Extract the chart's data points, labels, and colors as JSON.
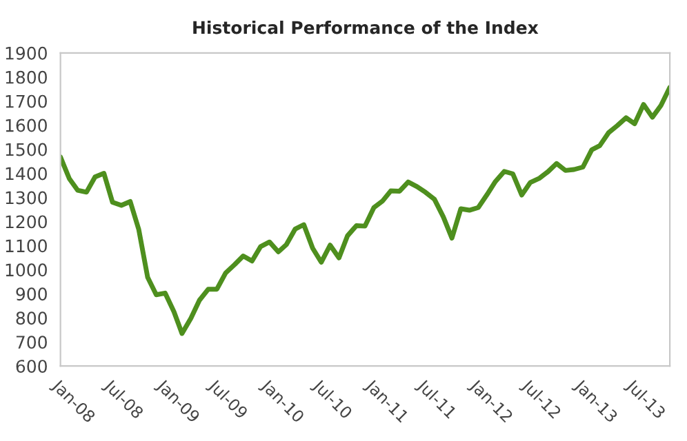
{
  "chart_data": {
    "type": "line",
    "title": "Historical Performance of the Index",
    "x": [
      "2008-01",
      "2008-02",
      "2008-03",
      "2008-04",
      "2008-05",
      "2008-06",
      "2008-07",
      "2008-08",
      "2008-09",
      "2008-10",
      "2008-11",
      "2008-12",
      "2009-01",
      "2009-02",
      "2009-03",
      "2009-04",
      "2009-05",
      "2009-06",
      "2009-07",
      "2009-08",
      "2009-09",
      "2009-10",
      "2009-11",
      "2009-12",
      "2010-01",
      "2010-02",
      "2010-03",
      "2010-04",
      "2010-05",
      "2010-06",
      "2010-07",
      "2010-08",
      "2010-09",
      "2010-10",
      "2010-11",
      "2010-12",
      "2011-01",
      "2011-02",
      "2011-03",
      "2011-04",
      "2011-05",
      "2011-06",
      "2011-07",
      "2011-08",
      "2011-09",
      "2011-10",
      "2011-11",
      "2011-12",
      "2012-01",
      "2012-02",
      "2012-03",
      "2012-04",
      "2012-05",
      "2012-06",
      "2012-07",
      "2012-08",
      "2012-09",
      "2012-10",
      "2012-11",
      "2012-12",
      "2013-01",
      "2013-02",
      "2013-03",
      "2013-04",
      "2013-05",
      "2013-06",
      "2013-07",
      "2013-08",
      "2013-09",
      "2013-10",
      "2013-11"
    ],
    "series": [
      {
        "color": "#4e8f1e",
        "values": [
          1468,
          1378,
          1330,
          1322,
          1385,
          1400,
          1280,
          1267,
          1283,
          1166,
          968,
          896,
          903,
          825,
          735,
          798,
          873,
          919,
          919,
          987,
          1021,
          1057,
          1036,
          1096,
          1115,
          1074,
          1104,
          1169,
          1187,
          1089,
          1031,
          1102,
          1049,
          1141,
          1183,
          1181,
          1258,
          1286,
          1327,
          1326,
          1364,
          1345,
          1321,
          1292,
          1219,
          1131,
          1253,
          1247,
          1258,
          1312,
          1366,
          1408,
          1398,
          1310,
          1362,
          1379,
          1407,
          1441,
          1412,
          1416,
          1426,
          1498,
          1515,
          1569,
          1598,
          1631,
          1606,
          1686,
          1633,
          1682,
          1757
        ]
      }
    ],
    "xlim": [
      "2008-01",
      "2013-11"
    ],
    "xticks": [
      {
        "value": "2008-01",
        "label": "Jan-08"
      },
      {
        "value": "2008-07",
        "label": "Jul-08"
      },
      {
        "value": "2009-01",
        "label": "Jan-09"
      },
      {
        "value": "2009-07",
        "label": "Jul-09"
      },
      {
        "value": "2010-01",
        "label": "Jan-10"
      },
      {
        "value": "2010-07",
        "label": "Jul-10"
      },
      {
        "value": "2011-01",
        "label": "Jan-11"
      },
      {
        "value": "2011-07",
        "label": "Jul-11"
      },
      {
        "value": "2012-01",
        "label": "Jan-12"
      },
      {
        "value": "2012-07",
        "label": "Jul-12"
      },
      {
        "value": "2013-01",
        "label": "Jan-13"
      },
      {
        "value": "2013-07",
        "label": "Jul-13"
      }
    ],
    "ylim": [
      600,
      1900
    ],
    "yticks": [
      600,
      700,
      800,
      900,
      1000,
      1100,
      1200,
      1300,
      1400,
      1500,
      1600,
      1700,
      1800,
      1900
    ],
    "grid": false,
    "legend": false
  }
}
